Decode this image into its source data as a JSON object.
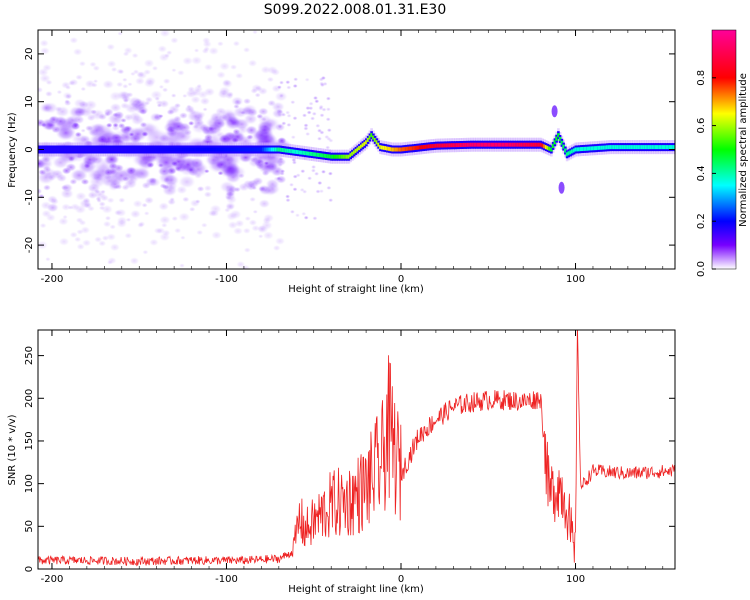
{
  "title": "S099.2022.008.01.31.E30",
  "chart_data": [
    {
      "type": "heatmap",
      "xlabel": "Height of straight line (km)",
      "ylabel": "Frequency (Hz)",
      "xlim": [
        -208,
        157
      ],
      "ylim": [
        -25,
        25
      ],
      "x_ticks": [
        -200,
        -100,
        0,
        100
      ],
      "y_ticks": [
        -20,
        -10,
        0,
        10,
        20
      ],
      "colorbar": {
        "label": "Normalized spectral amplitude",
        "range": [
          0,
          1
        ],
        "ticks": [
          0.0,
          0.2,
          0.4,
          0.6,
          0.8
        ],
        "tick_labels": [
          "0.0",
          "0.2",
          "0.4",
          "0.6",
          "0.8"
        ],
        "colors": [
          "#ffffff",
          "#7700ff",
          "#0000ff",
          "#00ffff",
          "#00ff00",
          "#ffff00",
          "#ff0000",
          "#ff0099"
        ]
      },
      "ridge": {
        "x": [
          -208,
          -160,
          -120,
          -80,
          -70,
          -60,
          -50,
          -40,
          -30,
          -20,
          -17,
          -12,
          -5,
          0,
          20,
          40,
          60,
          80,
          86,
          90,
          95,
          100,
          120,
          157
        ],
        "freq_hz": [
          0,
          0,
          0,
          0,
          0,
          -0.5,
          -1,
          -1.5,
          -1.5,
          1.5,
          3,
          0.5,
          0,
          0,
          0.8,
          1,
          1,
          1,
          0,
          3,
          -1,
          0,
          0.5,
          0.5
        ],
        "amplitude": [
          0.25,
          0.25,
          0.28,
          0.3,
          0.5,
          0.45,
          0.5,
          0.55,
          0.65,
          0.7,
          0.6,
          0.7,
          0.75,
          0.8,
          0.9,
          0.95,
          0.95,
          0.9,
          0.55,
          0.55,
          0.5,
          0.45,
          0.45,
          0.45
        ]
      }
    },
    {
      "type": "line",
      "color": "#ee2222",
      "xlabel": "Height of straight line (km)",
      "ylabel": "SNR (10 * v/v)",
      "xlim": [
        -208,
        157
      ],
      "ylim": [
        0,
        280
      ],
      "x_ticks": [
        -200,
        -100,
        0,
        100
      ],
      "y_ticks": [
        0,
        50,
        100,
        150,
        200,
        250
      ],
      "series": [
        {
          "x": [
            -208,
            -180,
            -150,
            -120,
            -90,
            -70,
            -62,
            -58,
            -55,
            -50,
            -40,
            -30,
            -20,
            -10,
            -8,
            0,
            10,
            20,
            30,
            40,
            50,
            60,
            70,
            80,
            83,
            85,
            90,
            95,
            98,
            100,
            101,
            103,
            110,
            130,
            157
          ],
          "values": [
            10,
            10,
            9,
            10,
            10,
            12,
            20,
            60,
            45,
            55,
            75,
            80,
            95,
            130,
            170,
            110,
            155,
            175,
            190,
            195,
            198,
            198,
            196,
            200,
            130,
            85,
            100,
            80,
            25,
            10,
            285,
            95,
            115,
            112,
            115
          ]
        }
      ]
    }
  ]
}
